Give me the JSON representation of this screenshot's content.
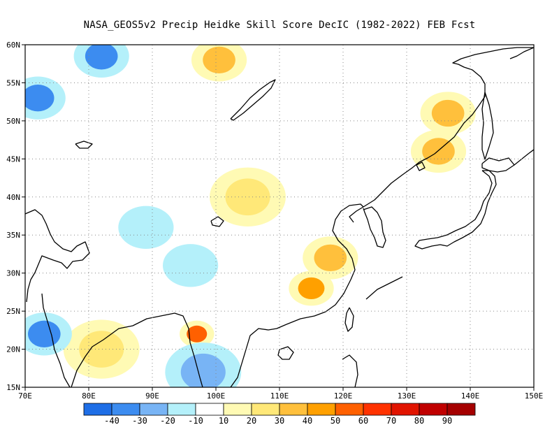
{
  "title": "NASA_GEOS5v2 Precip Heidke Skill Score DecIC (1982-2022) FEB Fcst",
  "map": {
    "lat_labels": [
      "60N",
      "55N",
      "50N",
      "45N",
      "40N",
      "35N",
      "30N",
      "25N",
      "20N",
      "15N"
    ],
    "lon_labels": [
      "70E",
      "80E",
      "90E",
      "100E",
      "110E",
      "120E",
      "130E",
      "140E",
      "150E"
    ],
    "lon_range": [
      70,
      150
    ],
    "lat_range": [
      15,
      60
    ],
    "grid": "dotted",
    "regions": [
      {
        "kind": "positive",
        "lon": 100.5,
        "lat": 58,
        "level": 30
      },
      {
        "kind": "positive",
        "lon": 97,
        "lat": 22,
        "level": 50
      },
      {
        "kind": "positive",
        "lon": 115,
        "lat": 28,
        "level": 40
      },
      {
        "kind": "positive",
        "lon": 136.5,
        "lat": 51,
        "level": 30
      },
      {
        "kind": "positive",
        "lon": 135,
        "lat": 46,
        "level": 30
      },
      {
        "kind": "positive",
        "lon": 118,
        "lat": 32,
        "level": 30
      },
      {
        "kind": "positive",
        "lon": 105,
        "lat": 40,
        "level": 20
      },
      {
        "kind": "positive",
        "lon": 82,
        "lat": 20,
        "level": 20
      },
      {
        "kind": "negative",
        "lon": 82,
        "lat": 58.5,
        "level": -30
      },
      {
        "kind": "negative",
        "lon": 72,
        "lat": 53,
        "level": -30
      },
      {
        "kind": "negative",
        "lon": 73,
        "lat": 22,
        "level": -30
      },
      {
        "kind": "negative",
        "lon": 96,
        "lat": 31,
        "level": -10
      },
      {
        "kind": "negative",
        "lon": 89,
        "lat": 36,
        "level": -10
      },
      {
        "kind": "negative",
        "lon": 98,
        "lat": 17,
        "level": -20
      }
    ]
  },
  "colorbar": {
    "labels": [
      "-40",
      "-30",
      "-20",
      "-10",
      "10",
      "20",
      "30",
      "40",
      "50",
      "60",
      "70",
      "80",
      "90"
    ],
    "colors": [
      "#1e6ee6",
      "#3c8cf0",
      "#78b4f5",
      "#b4f0fa",
      "#ffffff",
      "#fffab4",
      "#ffe878",
      "#ffc03c",
      "#ffa000",
      "#ff6000",
      "#ff3200",
      "#e11400",
      "#c00000",
      "#a50000"
    ]
  },
  "colors": {
    "coast": "#000000",
    "grid": "#888888"
  }
}
